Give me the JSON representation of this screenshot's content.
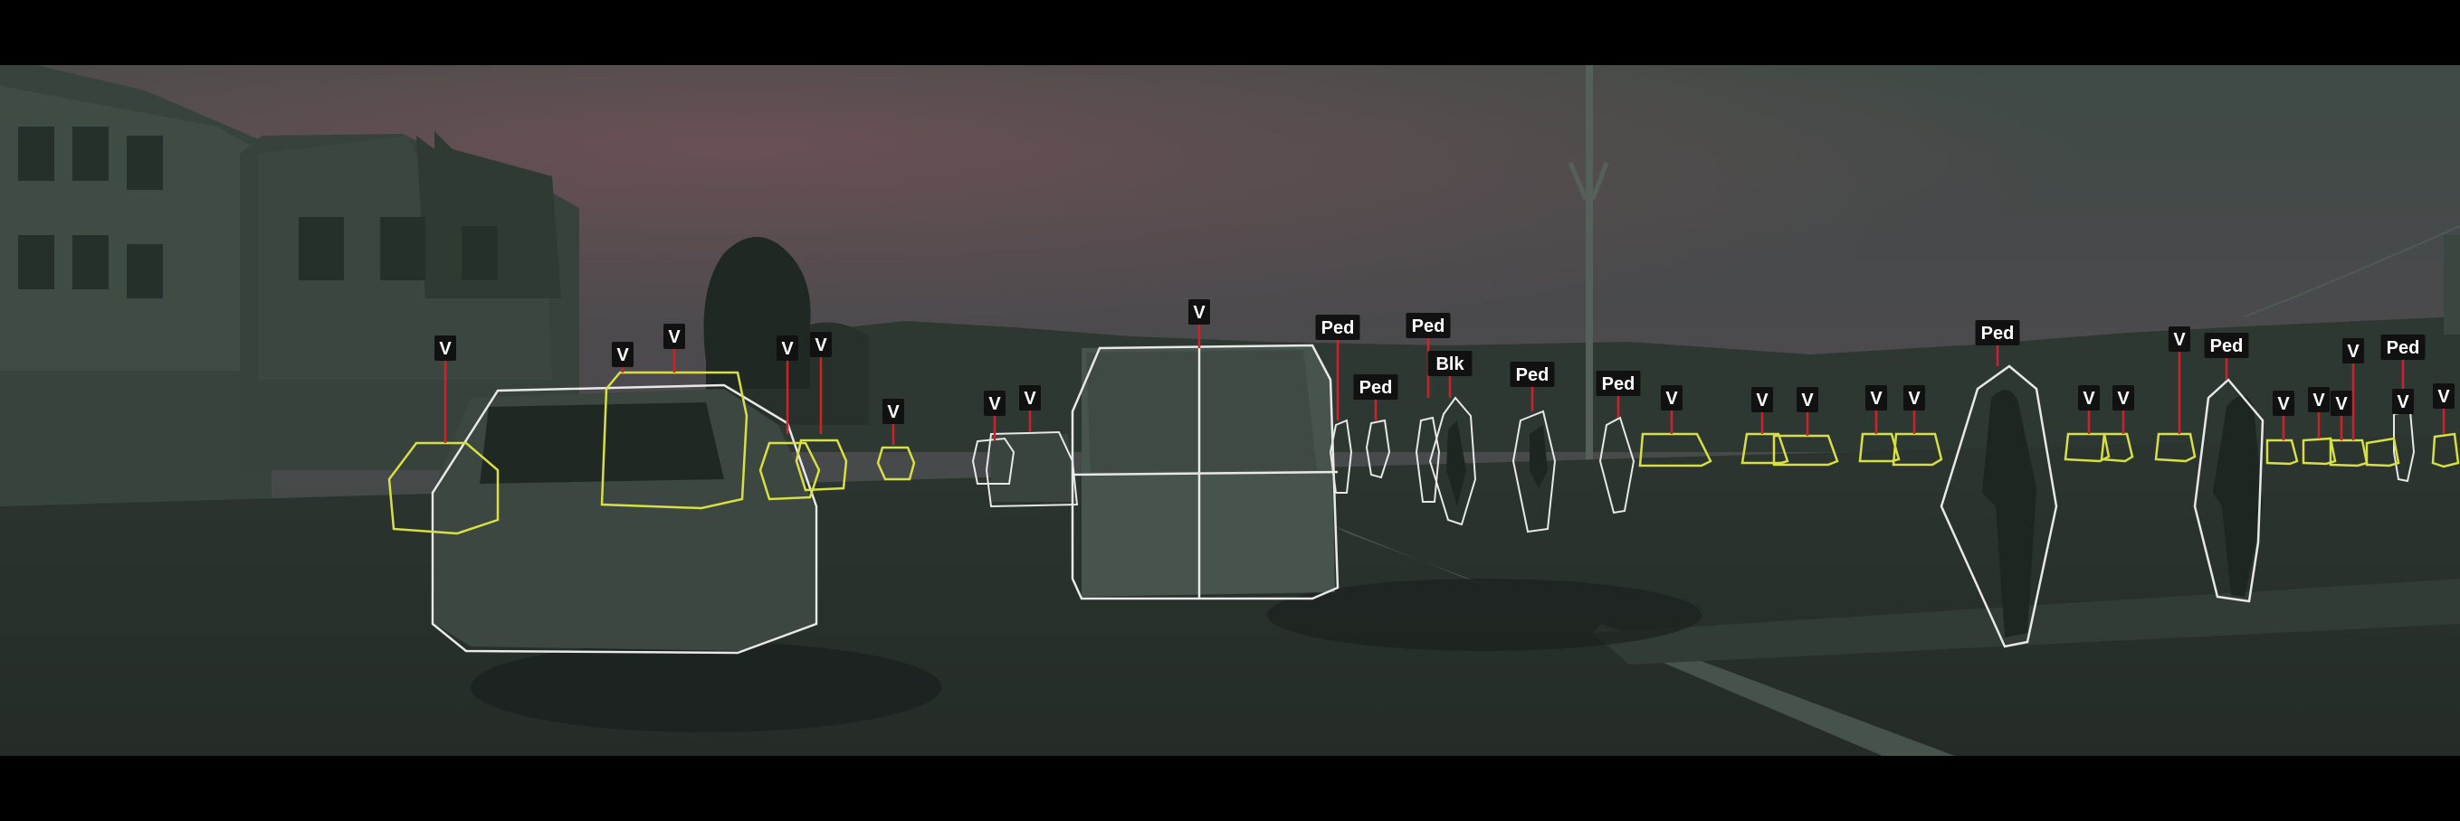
{
  "scene": {
    "colors": {
      "letterbox": "#000000",
      "label_bg": "#111111",
      "label_text": "#ffffff",
      "leader": "#d0202a",
      "box_near": "#e8e8e8",
      "box_far": "#d8df40"
    },
    "labels": {
      "vehicle": "V",
      "pedestrian": "Ped",
      "bike": "Blk"
    },
    "detections": [
      {
        "class": "vehicle",
        "outline": "near"
      },
      {
        "class": "vehicle",
        "outline": "far"
      },
      {
        "class": "vehicle",
        "outline": "far"
      },
      {
        "class": "vehicle",
        "outline": "far"
      },
      {
        "class": "vehicle",
        "outline": "far"
      },
      {
        "class": "vehicle",
        "outline": "far"
      },
      {
        "class": "vehicle",
        "outline": "near"
      },
      {
        "class": "vehicle",
        "outline": "near"
      },
      {
        "class": "vehicle",
        "outline": "near"
      },
      {
        "class": "pedestrian",
        "outline": "near"
      },
      {
        "class": "pedestrian",
        "outline": "near"
      },
      {
        "class": "pedestrian",
        "outline": "near"
      },
      {
        "class": "bike",
        "outline": "near"
      },
      {
        "class": "pedestrian",
        "outline": "near"
      },
      {
        "class": "pedestrian",
        "outline": "near"
      },
      {
        "class": "vehicle",
        "outline": "far"
      },
      {
        "class": "vehicle",
        "outline": "far"
      },
      {
        "class": "vehicle",
        "outline": "far"
      },
      {
        "class": "vehicle",
        "outline": "far"
      },
      {
        "class": "vehicle",
        "outline": "far"
      },
      {
        "class": "pedestrian",
        "outline": "near"
      },
      {
        "class": "vehicle",
        "outline": "far"
      },
      {
        "class": "vehicle",
        "outline": "far"
      },
      {
        "class": "vehicle",
        "outline": "far"
      },
      {
        "class": "pedestrian",
        "outline": "near"
      },
      {
        "class": "vehicle",
        "outline": "far"
      },
      {
        "class": "vehicle",
        "outline": "far"
      },
      {
        "class": "vehicle",
        "outline": "far"
      },
      {
        "class": "vehicle",
        "outline": "far"
      },
      {
        "class": "pedestrian",
        "outline": "near"
      },
      {
        "class": "vehicle",
        "outline": "near"
      },
      {
        "class": "vehicle",
        "outline": "far"
      }
    ]
  }
}
